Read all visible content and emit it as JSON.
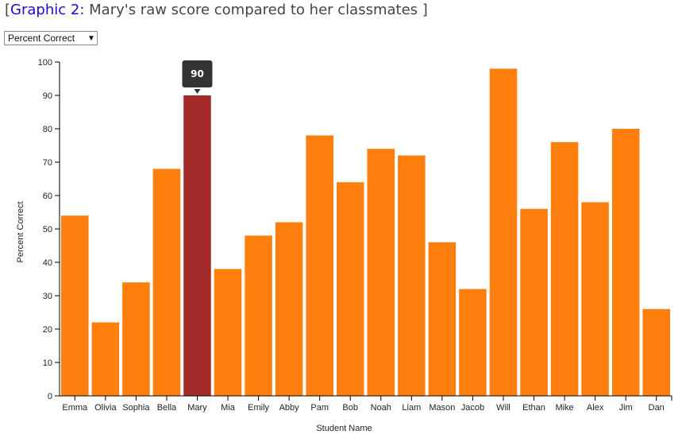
{
  "header": {
    "open_bracket": "[",
    "link_text": "Graphic 2",
    "colon": ":",
    "rest_text": " Mary's raw score compared to her classmates ",
    "close_bracket": "]"
  },
  "metric_select": {
    "selected": "Percent Correct",
    "caret_icon": "triangle-down-icon"
  },
  "tooltip": {
    "value": "90"
  },
  "chart_data": {
    "type": "bar",
    "title": "Mary's raw score compared to her classmates",
    "xlabel": "Student Name",
    "ylabel": "Percent Correct",
    "ylim": [
      0,
      100
    ],
    "yticks": [
      0,
      10,
      20,
      30,
      40,
      50,
      60,
      70,
      80,
      90,
      100
    ],
    "grid": false,
    "categories": [
      "Emma",
      "Olivia",
      "Sophia",
      "Bella",
      "Mary",
      "Mia",
      "Emily",
      "Abby",
      "Pam",
      "Bob",
      "Noah",
      "Liam",
      "Mason",
      "Jacob",
      "Will",
      "Ethan",
      "Mike",
      "Alex",
      "Jim",
      "Dan"
    ],
    "values": [
      54,
      22,
      34,
      68,
      90,
      38,
      48,
      52,
      78,
      64,
      74,
      72,
      46,
      32,
      98,
      56,
      76,
      58,
      80,
      26
    ],
    "highlight": "Mary",
    "colors": {
      "bar": "#ff7f0e",
      "highlight": "#a52a2a",
      "tooltip_bg": "#333333",
      "axis": "#000000"
    }
  }
}
